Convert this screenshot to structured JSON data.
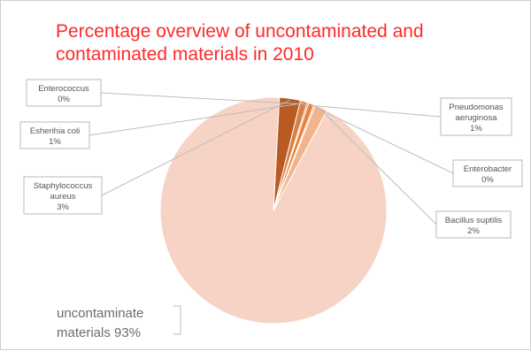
{
  "chart_data": {
    "type": "pie",
    "title": "Percentage overview of uncontaminated and\ncontaminated materials in 2010",
    "slices": [
      {
        "label_lines": [
          "Staphylococcus",
          "aureus",
          "3%"
        ],
        "value": 3,
        "color": "#b85a22"
      },
      {
        "label_lines": [
          "Esherihia coli",
          "1%"
        ],
        "value": 1,
        "color": "#d98048"
      },
      {
        "label_lines": [
          "Enterococcus",
          "0%"
        ],
        "value": 0.2,
        "color": "#c96a30"
      },
      {
        "label_lines": [
          "Pneudomonas",
          "aeruginosa",
          "1%"
        ],
        "value": 0.8,
        "color": "#e8833d"
      },
      {
        "label_lines": [
          "Enterobacter",
          "0%"
        ],
        "value": 0.2,
        "color": "#f0a270"
      },
      {
        "label_lines": [
          "Bacillus suptilis",
          "2%"
        ],
        "value": 1.8,
        "color": "#f2b48e"
      },
      {
        "label_lines": [
          "uncontaminate",
          "materials 93%"
        ],
        "value": 93,
        "color": "#f7d3c5"
      }
    ],
    "legend": "none"
  }
}
